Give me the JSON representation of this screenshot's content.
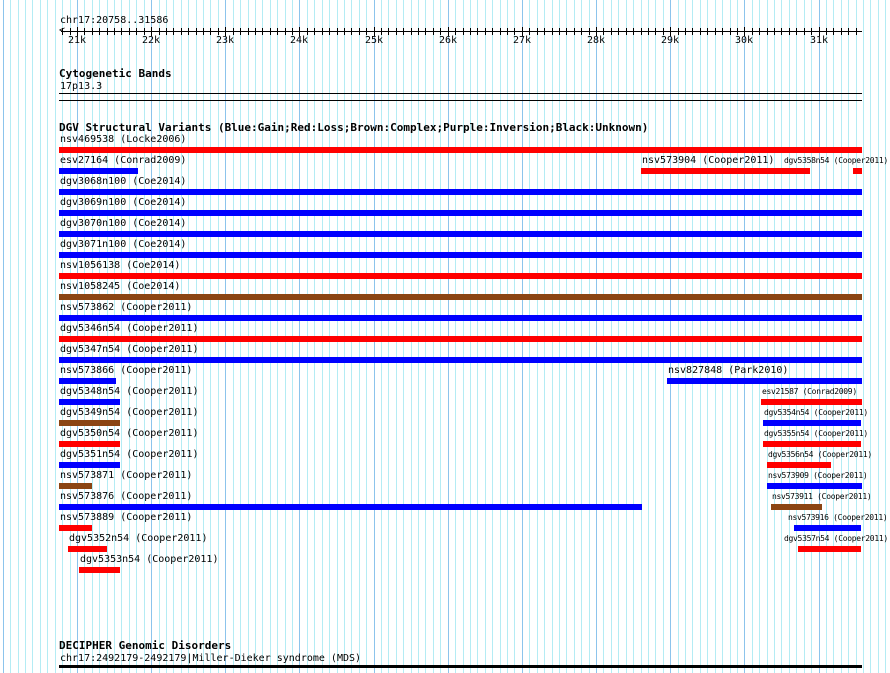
{
  "ruler": {
    "location": "chr17:20758..31586",
    "start": 20758,
    "end": 31586,
    "tick_labels": [
      "21k",
      "22k",
      "23k",
      "24k",
      "25k",
      "26k",
      "27k",
      "28k",
      "29k",
      "30k",
      "31k"
    ]
  },
  "cytobands": {
    "title": "Cytogenetic Bands",
    "band": "17p13.3"
  },
  "dgv": {
    "title": "DGV Structural Variants (Blue:Gain;Red:Loss;Brown:Complex;Purple:Inversion;Black:Unknown)",
    "colors": {
      "gain": "#0000ff",
      "loss": "#ff0000",
      "complex": "#8b4513"
    },
    "features": [
      {
        "label": "nsv469538 (Locke2006)",
        "row": 0,
        "start": 20758,
        "end": 31586,
        "type": "loss"
      },
      {
        "label": "esv27164 (Conrad2009)",
        "row": 1,
        "start": 20758,
        "end": 21823,
        "type": "gain"
      },
      {
        "label": "nsv573904 (Cooper2011)",
        "row": 1,
        "start": 28606,
        "end": 30884,
        "type": "loss"
      },
      {
        "label": "dgv5358n54 (Cooper2011)",
        "row": 1,
        "start": 31465,
        "end": 31586,
        "type": "loss"
      },
      {
        "label": "dgv3068n100 (Coe2014)",
        "row": 2,
        "start": 20758,
        "end": 31586,
        "type": "gain"
      },
      {
        "label": "dgv3069n100 (Coe2014)",
        "row": 3,
        "start": 20758,
        "end": 31586,
        "type": "gain"
      },
      {
        "label": "dgv3070n100 (Coe2014)",
        "row": 4,
        "start": 20758,
        "end": 31586,
        "type": "gain"
      },
      {
        "label": "dgv3071n100 (Coe2014)",
        "row": 5,
        "start": 20758,
        "end": 31586,
        "type": "gain"
      },
      {
        "label": "nsv1056138 (Coe2014)",
        "row": 6,
        "start": 20758,
        "end": 31586,
        "type": "loss"
      },
      {
        "label": "nsv1058245 (Coe2014)",
        "row": 7,
        "start": 20758,
        "end": 31586,
        "type": "complex"
      },
      {
        "label": "nsv573862 (Cooper2011)",
        "row": 8,
        "start": 20758,
        "end": 31586,
        "type": "gain"
      },
      {
        "label": "dgv5346n54 (Cooper2011)",
        "row": 9,
        "start": 20758,
        "end": 31586,
        "type": "loss"
      },
      {
        "label": "dgv5347n54 (Cooper2011)",
        "row": 10,
        "start": 20758,
        "end": 31586,
        "type": "gain"
      },
      {
        "label": "nsv573866 (Cooper2011)",
        "row": 11,
        "start": 20758,
        "end": 21527,
        "type": "gain"
      },
      {
        "label": "nsv827848 (Park2010)",
        "row": 11,
        "start": 28956,
        "end": 31586,
        "type": "gain"
      },
      {
        "label": "dgv5348n54 (Cooper2011)",
        "row": 12,
        "start": 20758,
        "end": 21580,
        "type": "gain"
      },
      {
        "label": "esv21587 (Conrad2009)",
        "row": 12,
        "start": 30224,
        "end": 31586,
        "type": "loss"
      },
      {
        "label": "dgv5349n54 (Cooper2011)",
        "row": 13,
        "start": 20758,
        "end": 21580,
        "type": "complex"
      },
      {
        "label": "dgv5354n54 (Cooper2011)",
        "row": 13,
        "start": 30251,
        "end": 31572,
        "type": "gain"
      },
      {
        "label": "dgv5350n54 (Cooper2011)",
        "row": 14,
        "start": 20758,
        "end": 21580,
        "type": "loss"
      },
      {
        "label": "dgv5355n54 (Cooper2011)",
        "row": 14,
        "start": 30251,
        "end": 31572,
        "type": "loss"
      },
      {
        "label": "dgv5351n54 (Cooper2011)",
        "row": 15,
        "start": 20758,
        "end": 21580,
        "type": "gain"
      },
      {
        "label": "dgv5356n54 (Cooper2011)",
        "row": 15,
        "start": 30305,
        "end": 31168,
        "type": "loss"
      },
      {
        "label": "nsv573871 (Cooper2011)",
        "row": 16,
        "start": 20758,
        "end": 21203,
        "type": "complex"
      },
      {
        "label": "nsv573909 (Cooper2011)",
        "row": 16,
        "start": 30305,
        "end": 31586,
        "type": "gain"
      },
      {
        "label": "nsv573876 (Cooper2011)",
        "row": 17,
        "start": 20758,
        "end": 28619,
        "type": "gain"
      },
      {
        "label": "nsv573911 (Cooper2011)",
        "row": 17,
        "start": 30359,
        "end": 31047,
        "type": "complex"
      },
      {
        "label": "nsv573889 (Cooper2011)",
        "row": 18,
        "start": 20758,
        "end": 21203,
        "type": "loss"
      },
      {
        "label": "nsv573916 (Cooper2011)",
        "row": 18,
        "start": 30669,
        "end": 31572,
        "type": "gain"
      },
      {
        "label": "dgv5352n54 (Cooper2011)",
        "row": 19,
        "start": 20879,
        "end": 21405,
        "type": "loss"
      },
      {
        "label": "dgv5357n54 (Cooper2011)",
        "row": 19,
        "start": 30723,
        "end": 31572,
        "type": "loss"
      },
      {
        "label": "dgv5353n54 (Cooper2011)",
        "row": 20,
        "start": 21028,
        "end": 21580,
        "type": "loss"
      }
    ]
  },
  "decipher": {
    "title": "DECIPHER Genomic Disorders",
    "feature": "chr17:2492179-2492179|Miller-Dieker syndrome (MDS)"
  }
}
